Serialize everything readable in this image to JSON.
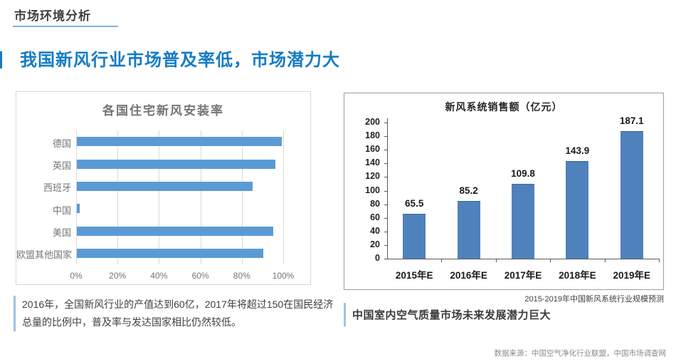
{
  "colors": {
    "title_blue": "#147cc4",
    "underline_blue": "#7fb2dd",
    "edge_accent_blue": "#1a7ac5",
    "left_bar": "#5b9bd5",
    "right_bar": "#4f81bd",
    "gridline": "#d9d9d9",
    "note_border_blue": "#9dc3e6"
  },
  "header": {
    "title": "市场环境分析"
  },
  "main_title": "我国新风行业市场普及率低，市场潜力大",
  "chart_data": [
    {
      "type": "bar",
      "orientation": "horizontal",
      "title": "各国住宅新风安装率",
      "categories": [
        "德国",
        "英国",
        "西班牙",
        "中国",
        "美国",
        "欧盟其他国家"
      ],
      "values": [
        99,
        96,
        85,
        1.5,
        95,
        90
      ],
      "x_ticks": [
        "0%",
        "20%",
        "40%",
        "60%",
        "80%",
        "100%"
      ],
      "xlim": [
        0,
        100
      ],
      "grid": true,
      "legend": "none",
      "bar_color": "#5b9bd5"
    },
    {
      "type": "bar",
      "orientation": "vertical",
      "title": "新风系统销售额（亿元）",
      "categories": [
        "2015年E",
        "2016年E",
        "2017年E",
        "2018年E",
        "2019年E"
      ],
      "values": [
        65.5,
        85.2,
        109.8,
        143.9,
        187.1
      ],
      "data_labels": [
        "65.5",
        "85.2",
        "109.8",
        "143.9",
        "187.1"
      ],
      "y_ticks": [
        0,
        20,
        40,
        60,
        80,
        100,
        120,
        140,
        160,
        180,
        200
      ],
      "ylim": [
        0,
        200
      ],
      "grid": false,
      "legend": "none",
      "bar_color": "#4f81bd",
      "caption": "2015-2019年中国新风系统行业规模预测"
    }
  ],
  "notes": {
    "left": "2016年，全国新风行业的产值达到60亿，2017年将超过150在国民经济总量的比例中，普及率与发达国家相比仍然较低。",
    "right": "中国室内空气质量市场未来发展潜力巨大"
  },
  "source": "数据来源：中国空气净化行业联盟，中国市场调查网"
}
